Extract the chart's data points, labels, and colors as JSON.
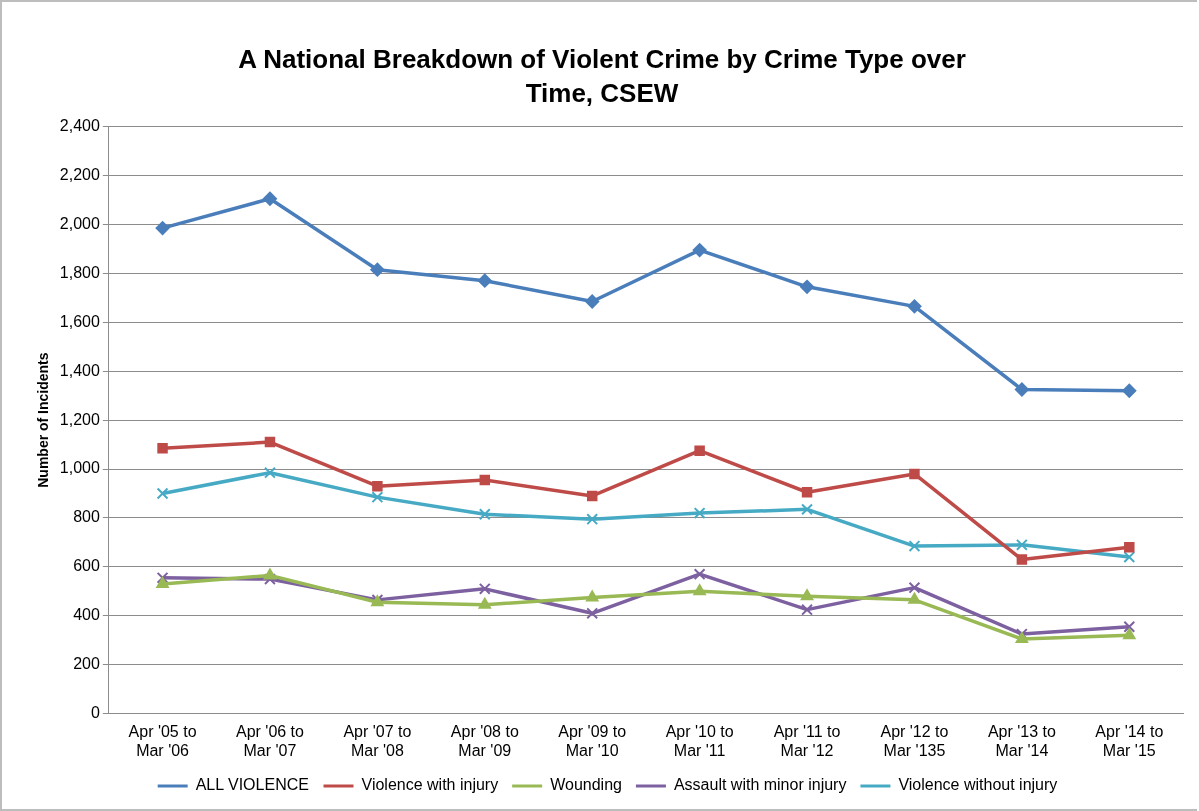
{
  "chart_data": {
    "type": "line",
    "title": "A National Breakdown of Violent Crime by Crime Type over Time, CSEW",
    "ylabel": "Number of Incidents",
    "categories": [
      "Apr '05 to Mar '06",
      "Apr '06 to Mar '07",
      "Apr '07 to Mar '08",
      "Apr '08 to Mar '09",
      "Apr '09 to Mar '10",
      "Apr '10 to Mar '11",
      "Apr '11 to Mar '12",
      "Apr '12 to Mar '135",
      "Apr '13 to Mar '14",
      "Apr '14 to Mar '15"
    ],
    "series": [
      {
        "name": "ALL VIOLENCE",
        "color": "#4a7ebb",
        "marker": "diamond",
        "values": [
          1985,
          2105,
          1815,
          1770,
          1685,
          1895,
          1745,
          1665,
          1325,
          1320
        ]
      },
      {
        "name": "Violence with injury",
        "color": "#be4b48",
        "marker": "square",
        "values": [
          1085,
          1110,
          930,
          955,
          890,
          1075,
          905,
          980,
          630,
          680
        ]
      },
      {
        "name": "Wounding",
        "color": "#98b954",
        "marker": "triangle",
        "values": [
          530,
          565,
          455,
          445,
          475,
          500,
          480,
          465,
          305,
          320
        ]
      },
      {
        "name": "Assault with minor injury",
        "color": "#7d60a0",
        "marker": "cross",
        "values": [
          555,
          550,
          465,
          510,
          410,
          570,
          425,
          515,
          325,
          355
        ]
      },
      {
        "name": "Violence without injury",
        "color": "#46aac5",
        "marker": "cross",
        "values": [
          900,
          985,
          885,
          815,
          795,
          820,
          835,
          685,
          690,
          640
        ]
      }
    ],
    "ylim": [
      0,
      2400
    ],
    "yticks": [
      {
        "value": 0,
        "label": "0"
      },
      {
        "value": 200,
        "label": "200"
      },
      {
        "value": 400,
        "label": "400"
      },
      {
        "value": 600,
        "label": "600"
      },
      {
        "value": 800,
        "label": "800"
      },
      {
        "value": 1000,
        "label": "1,000"
      },
      {
        "value": 1200,
        "label": "1,200"
      },
      {
        "value": 1400,
        "label": "1,400"
      },
      {
        "value": 1600,
        "label": "1,600"
      },
      {
        "value": 1800,
        "label": "1,800"
      },
      {
        "value": 2000,
        "label": "2,000"
      },
      {
        "value": 2200,
        "label": "2,200"
      },
      {
        "value": 2400,
        "label": "2,400"
      }
    ],
    "grid": "y",
    "legend": "bottom",
    "line_style": "solid"
  }
}
